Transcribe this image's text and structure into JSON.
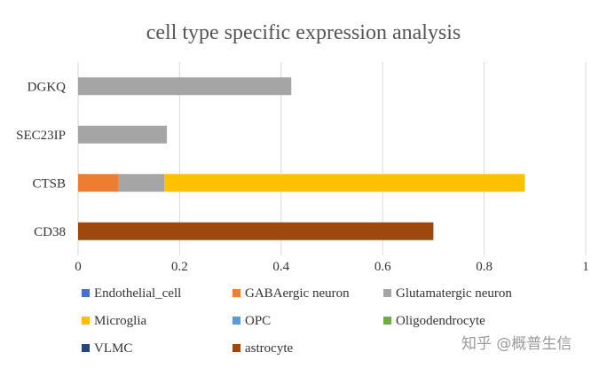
{
  "chart_data": {
    "type": "bar",
    "orientation": "horizontal",
    "stacked": true,
    "title": "cell type specific expression analysis",
    "categories": [
      "CD38",
      "CTSB",
      "SEC23IP",
      "DGKQ"
    ],
    "xlim": [
      0,
      1
    ],
    "xticks": [
      "0",
      "0.2",
      "0.4",
      "0.6",
      "0.8",
      "1"
    ],
    "grid": true,
    "legend_position": "bottom",
    "series": [
      {
        "name": "Endothelial_cell",
        "color": "#4472C4",
        "values": [
          0,
          0,
          0,
          0
        ]
      },
      {
        "name": "GABAergic neuron",
        "color": "#ED7D31",
        "values": [
          0,
          0.08,
          0,
          0
        ]
      },
      {
        "name": "Glutamatergic neuron",
        "color": "#A5A5A5",
        "values": [
          0,
          0.09,
          0.175,
          0.42
        ]
      },
      {
        "name": "Microglia",
        "color": "#FFC000",
        "values": [
          0,
          0.71,
          0,
          0
        ]
      },
      {
        "name": "OPC",
        "color": "#5B9BD5",
        "values": [
          0,
          0,
          0,
          0
        ]
      },
      {
        "name": "Oligodendrocyte",
        "color": "#70AD47",
        "values": [
          0,
          0,
          0,
          0
        ]
      },
      {
        "name": "VLMC",
        "color": "#264478",
        "values": [
          0,
          0,
          0,
          0
        ]
      },
      {
        "name": "astrocyte",
        "color": "#9E480E",
        "values": [
          0.7,
          0,
          0,
          0
        ]
      }
    ]
  },
  "watermark": "知乎 @概普生信"
}
